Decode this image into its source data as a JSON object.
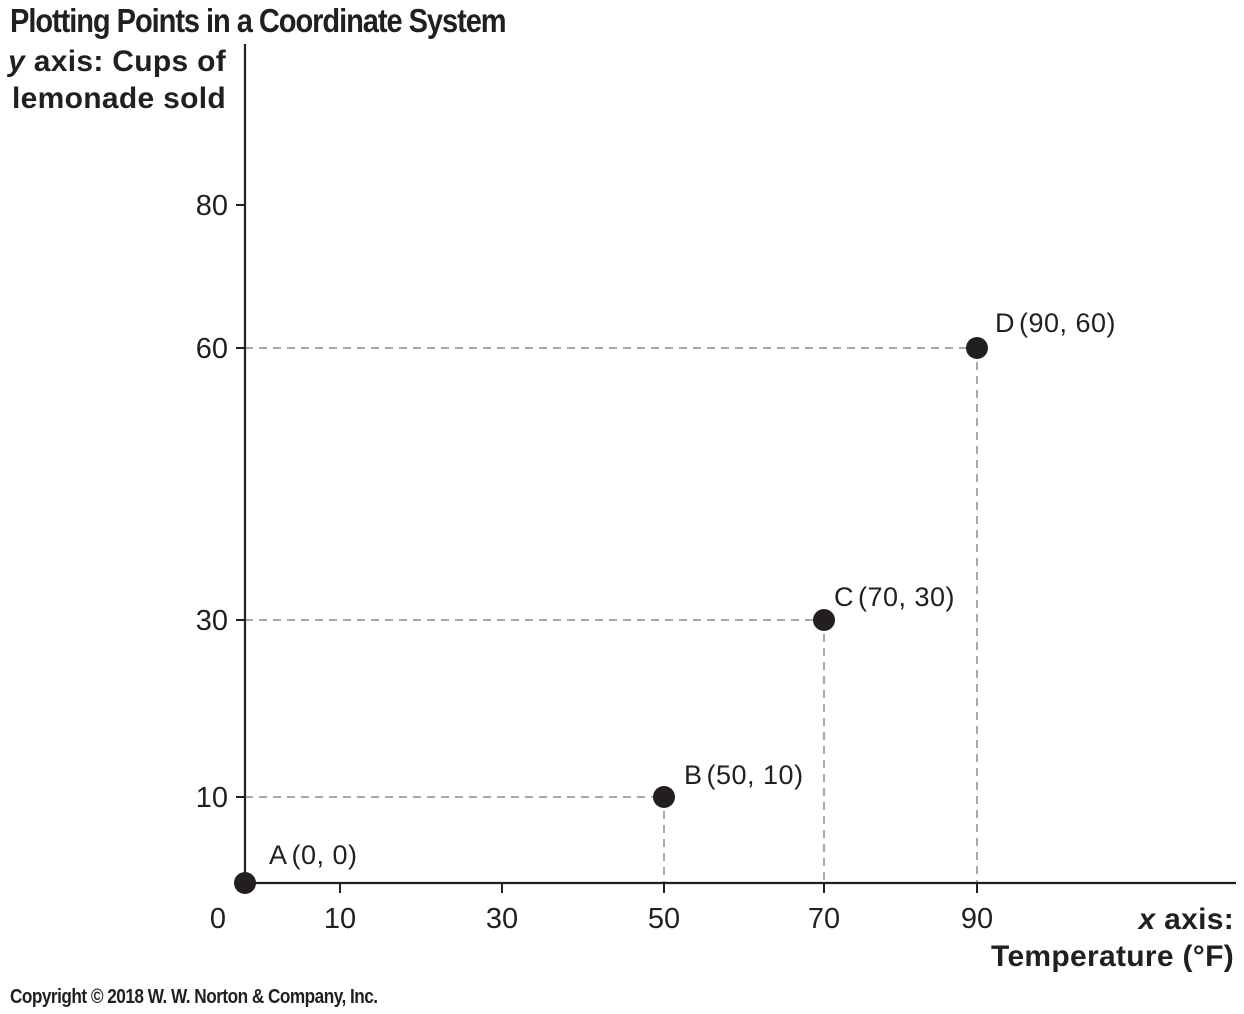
{
  "title": "Plotting Points in a Coordinate System",
  "copyright": "Copyright © 2018 W. W. Norton & Company, Inc.",
  "colors": {
    "ink": "#231f20",
    "guide": "#a7a9ac"
  },
  "chart_data": {
    "type": "scatter",
    "title": "Plotting Points in a Coordinate System",
    "ylabel": {
      "var": "y",
      "rest_line1": " axis: Cups of",
      "line2": "lemonade sold"
    },
    "xlabel": {
      "var": "x",
      "rest_line1": " axis:",
      "line2": "Temperature (°F)"
    },
    "origin_label": "0",
    "x_ticks": [
      10,
      30,
      50,
      70,
      90
    ],
    "x_tick_labels": [
      "10",
      "30",
      "50",
      "70",
      "90"
    ],
    "y_ticks": [
      10,
      30,
      60,
      80
    ],
    "y_tick_labels": [
      "10",
      "30",
      "60",
      "80"
    ],
    "points": [
      {
        "id": "A",
        "x": 0,
        "y": 0,
        "label": "A",
        "coords": "(0, 0)"
      },
      {
        "id": "B",
        "x": 50,
        "y": 10,
        "label": "B",
        "coords": "(50, 10)"
      },
      {
        "id": "C",
        "x": 70,
        "y": 30,
        "label": "C",
        "coords": "(70, 30)"
      },
      {
        "id": "D",
        "x": 90,
        "y": 60,
        "label": "D",
        "coords": "(90, 60)"
      }
    ],
    "dashed_guides": true,
    "grid": false,
    "legend": "none"
  }
}
